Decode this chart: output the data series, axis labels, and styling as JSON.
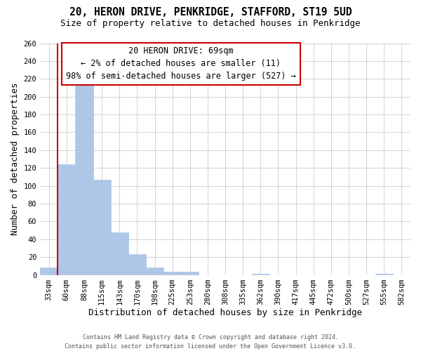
{
  "title": "20, HERON DRIVE, PENKRIDGE, STAFFORD, ST19 5UD",
  "subtitle": "Size of property relative to detached houses in Penkridge",
  "xlabel": "Distribution of detached houses by size in Penkridge",
  "ylabel": "Number of detached properties",
  "footer_lines": [
    "Contains HM Land Registry data © Crown copyright and database right 2024.",
    "Contains public sector information licensed under the Open Government Licence v3.0."
  ],
  "bin_labels": [
    "33sqm",
    "60sqm",
    "88sqm",
    "115sqm",
    "143sqm",
    "170sqm",
    "198sqm",
    "225sqm",
    "253sqm",
    "280sqm",
    "308sqm",
    "335sqm",
    "362sqm",
    "390sqm",
    "417sqm",
    "445sqm",
    "472sqm",
    "500sqm",
    "527sqm",
    "555sqm",
    "582sqm"
  ],
  "bar_values": [
    8,
    124,
    219,
    107,
    48,
    23,
    8,
    4,
    4,
    0,
    0,
    0,
    1,
    0,
    0,
    0,
    0,
    0,
    0,
    1,
    0
  ],
  "bar_color": "#aec6e8",
  "bar_edge_color": "#b0c8ea",
  "vline_color": "#cc0000",
  "annotation_text": "20 HERON DRIVE: 69sqm\n← 2% of detached houses are smaller (11)\n98% of semi-detached houses are larger (527) →",
  "annotation_box_color": "#ffffff",
  "annotation_box_edge_color": "#cc0000",
  "ylim": [
    0,
    260
  ],
  "yticks": [
    0,
    20,
    40,
    60,
    80,
    100,
    120,
    140,
    160,
    180,
    200,
    220,
    240,
    260
  ],
  "grid_color": "#cccccc",
  "bg_color": "#ffffff",
  "title_fontsize": 10.5,
  "subtitle_fontsize": 9,
  "axis_label_fontsize": 9,
  "tick_fontsize": 7.5,
  "annotation_fontsize": 8.5
}
